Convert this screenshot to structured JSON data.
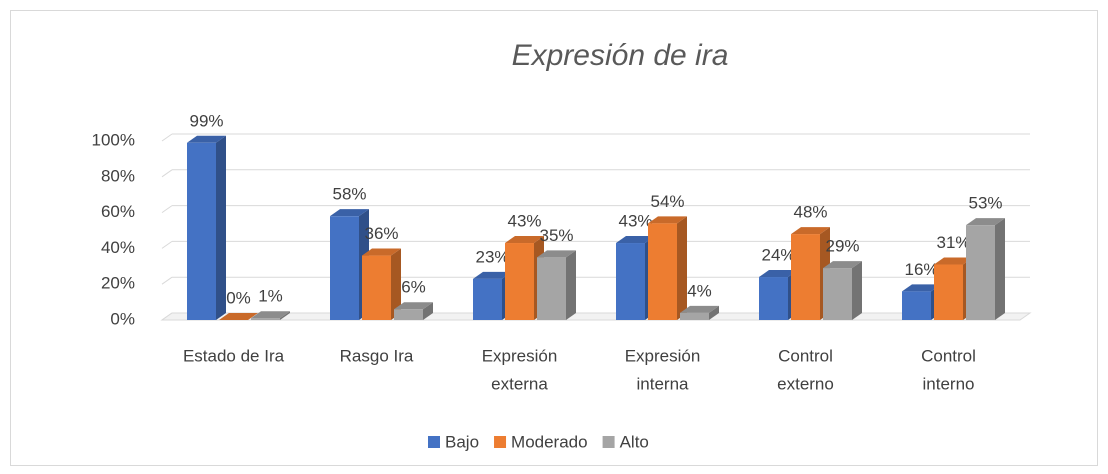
{
  "chart_data": {
    "type": "bar3d",
    "title": "Expresión de ira",
    "categories": [
      [
        "Estado de Ira"
      ],
      [
        "Rasgo Ira"
      ],
      [
        "Expresión",
        "externa"
      ],
      [
        "Expresión",
        "interna"
      ],
      [
        "Control",
        "externo"
      ],
      [
        "Control",
        "interno"
      ]
    ],
    "series": [
      {
        "name": "Bajo",
        "color": "#4472c4",
        "values": [
          99,
          58,
          23,
          43,
          24,
          16
        ],
        "value_labels": [
          "99%",
          "58%",
          "23%",
          "43%",
          "24%",
          "16%"
        ]
      },
      {
        "name": "Moderado",
        "color": "#ed7d31",
        "values": [
          0,
          36,
          43,
          54,
          48,
          31
        ],
        "value_labels": [
          "0%",
          "36%",
          "43%",
          "54%",
          "48%",
          "31%"
        ]
      },
      {
        "name": "Alto",
        "color": "#a5a5a5",
        "values": [
          1,
          6,
          35,
          4,
          29,
          53
        ],
        "value_labels": [
          "1%",
          "6%",
          "35%",
          "4%",
          "29%",
          "53%"
        ]
      }
    ],
    "ylim": [
      0,
      100
    ],
    "yticks": [
      {
        "value": 0,
        "label": "0%"
      },
      {
        "value": 20,
        "label": "20%"
      },
      {
        "value": 40,
        "label": "40%"
      },
      {
        "value": 60,
        "label": "60%"
      },
      {
        "value": 80,
        "label": "80%"
      },
      {
        "value": 100,
        "label": "100%"
      }
    ],
    "grid": true,
    "legend": "bottom"
  }
}
